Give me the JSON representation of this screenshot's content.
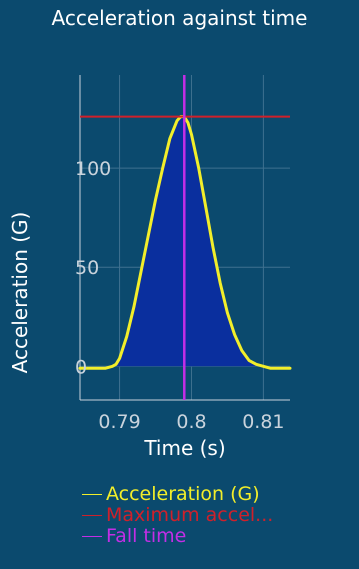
{
  "colors": {
    "background": "#0b4a6e",
    "axis": "#c9d3dc",
    "grid": "#3f7190",
    "acceleration": "#f2ee2a",
    "fill": "#0a2f9e",
    "maximum": "#d0202a",
    "fall_time": "#c32ee6"
  },
  "chart_data": {
    "type": "area",
    "title": "Acceleration against time",
    "xlabel": "Time (s)",
    "ylabel": "Acceleration (G)",
    "xlim": [
      0.7845,
      0.8137
    ],
    "ylim": [
      -17,
      147
    ],
    "x_ticks": [
      0.79,
      0.8,
      0.81
    ],
    "x_tick_labels": [
      "0.79",
      "0.8",
      "0.81"
    ],
    "y_ticks": [
      0,
      50,
      100
    ],
    "y_tick_labels": [
      "0",
      "50",
      "100"
    ],
    "grid": true,
    "legend_position": "bottom",
    "series": [
      {
        "name": "Acceleration (G)",
        "x": [
          0.7845,
          0.786,
          0.788,
          0.789,
          0.7895,
          0.79,
          0.791,
          0.792,
          0.793,
          0.794,
          0.795,
          0.796,
          0.797,
          0.798,
          0.7985,
          0.799,
          0.7995,
          0.8,
          0.801,
          0.802,
          0.803,
          0.804,
          0.805,
          0.806,
          0.807,
          0.808,
          0.809,
          0.81,
          0.811,
          0.812,
          0.8137
        ],
        "y": [
          -1,
          -1,
          -1,
          0,
          1,
          4,
          15,
          30,
          48,
          66,
          84,
          100,
          115,
          124,
          126,
          126,
          123,
          117,
          100,
          80,
          60,
          42,
          27,
          16,
          8,
          3,
          1,
          0,
          -1,
          -1,
          -1
        ]
      },
      {
        "name": "Maximum accel...",
        "y_value": 126
      },
      {
        "name": "Fall time",
        "x_value": 0.799
      }
    ]
  }
}
